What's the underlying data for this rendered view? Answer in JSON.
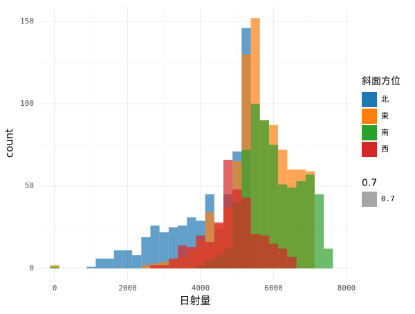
{
  "chart_data": {
    "type": "histogram",
    "x_label": "日射量",
    "y_label": "count",
    "bins": [
      -125,
      125,
      375,
      625,
      875,
      1125,
      1375,
      1625,
      1875,
      2125,
      2375,
      2625,
      2875,
      3125,
      3375,
      3625,
      3875,
      4125,
      4375,
      4625,
      4875,
      5125,
      5375,
      5625,
      5875,
      6125,
      6375,
      6625,
      6875,
      7125,
      7375,
      7625
    ],
    "series": [
      {
        "name": "北",
        "color": "#1f77b4",
        "values": [
          0,
          0,
          0,
          0,
          1,
          6,
          6,
          11,
          11,
          8,
          19,
          26,
          22,
          25,
          26,
          31,
          29,
          45,
          24,
          45,
          71,
          146,
          0,
          0,
          0,
          0,
          0,
          0,
          0,
          0,
          0
        ]
      },
      {
        "name": "東",
        "color": "#ff7f0e",
        "values": [
          2,
          0,
          0,
          0,
          0,
          0,
          0,
          0,
          0,
          0,
          2,
          3,
          4,
          5,
          7,
          12,
          17,
          34,
          27,
          37,
          65,
          130,
          152,
          90,
          87,
          72,
          60,
          60,
          59,
          0,
          0
        ]
      },
      {
        "name": "南",
        "color": "#2ca02c",
        "values": [
          1,
          0,
          0,
          0,
          0,
          0,
          0,
          0,
          0,
          0,
          0,
          0,
          0,
          0,
          0,
          0,
          2,
          5,
          8,
          12,
          40,
          72,
          100,
          90,
          75,
          51,
          49,
          53,
          57,
          45,
          12
        ]
      },
      {
        "name": "西",
        "color": "#d62728",
        "values": [
          0,
          0,
          0,
          0,
          0,
          0,
          0,
          0,
          0,
          0,
          0,
          2,
          2,
          6,
          14,
          13,
          20,
          16,
          28,
          66,
          48,
          43,
          21,
          20,
          15,
          12,
          7,
          0,
          0,
          0,
          0
        ]
      }
    ],
    "alpha": 0.7,
    "legend_title": "斜面方位",
    "alpha_legend": {
      "title": "0.7",
      "label": "0.7",
      "color": "#a6a6a6"
    },
    "xlim": [
      -455,
      8170
    ],
    "ylim": [
      -7.1,
      158.8
    ],
    "xticks": [
      0,
      2000,
      4000,
      6000,
      8000
    ],
    "yticks": [
      0,
      50,
      100,
      150
    ],
    "grid": true,
    "minor_grid": true,
    "legend_position": "right"
  }
}
